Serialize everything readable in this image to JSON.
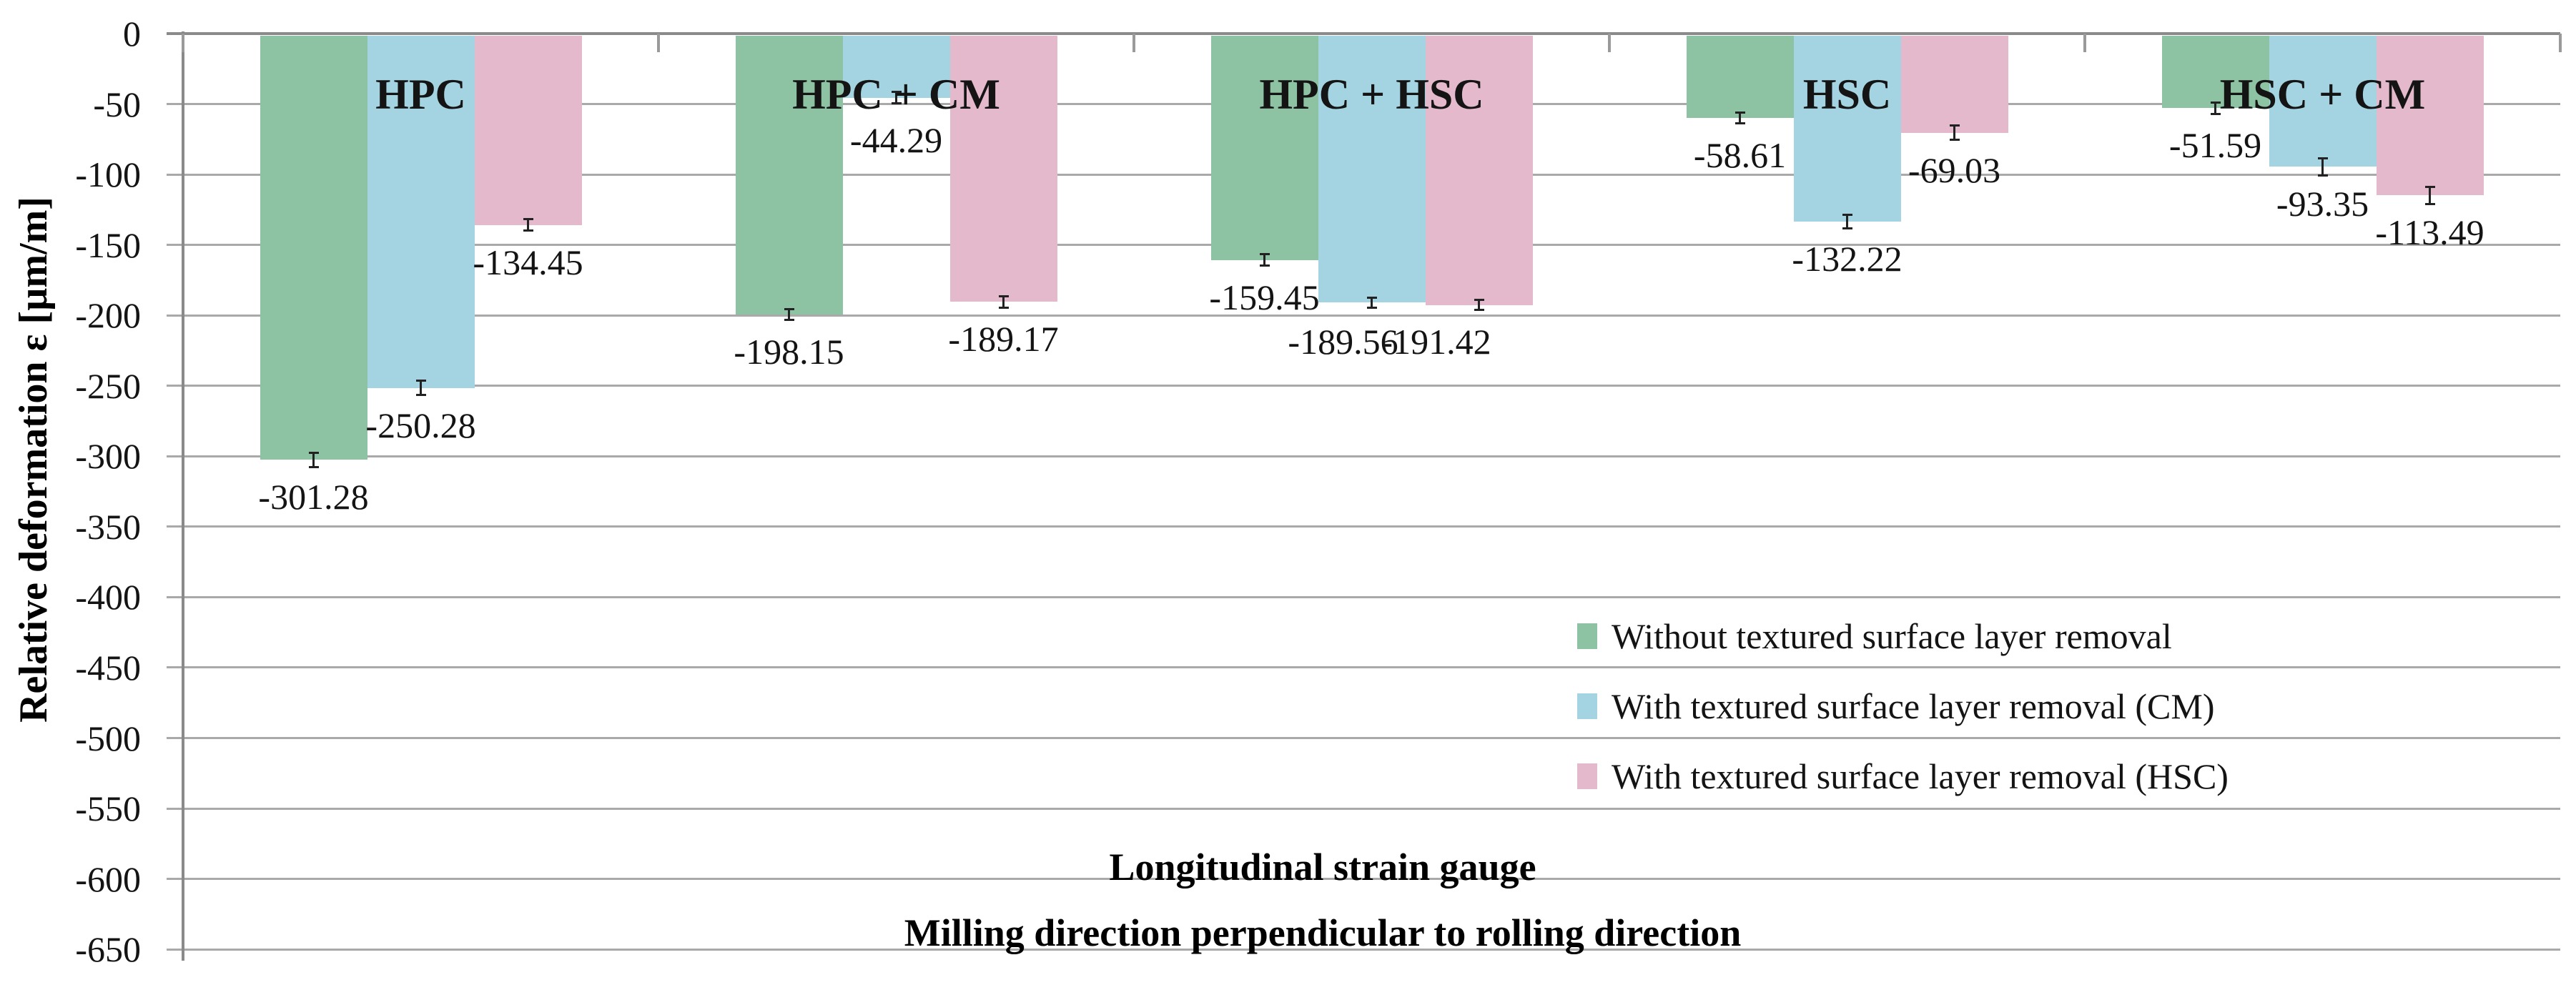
{
  "figure": {
    "y_axis_title": "Relative deformation ε [µm/m]",
    "title_line1": "Longitudinal strain gauge",
    "title_line2": "Milling direction perpendicular to rolling direction"
  },
  "legend": {
    "position": "middle-right",
    "items": [
      {
        "label": "Without textured surface layer removal",
        "color": "#8dc2a2"
      },
      {
        "label": "With textured surface layer removal (CM)",
        "color": "#a4d3e2"
      },
      {
        "label": "With textured surface layer removal (HSC)",
        "color": "#e4b9cc"
      }
    ]
  },
  "chart_data": {
    "type": "bar",
    "orientation": "vertical-negative",
    "title": "Longitudinal strain gauge — Milling direction perpendicular to rolling direction",
    "xlabel": "",
    "ylabel": "Relative deformation ε [µm/m]",
    "ylim": [
      0,
      -650
    ],
    "y_tick_step": 50,
    "y_ticks": [
      "0",
      "-50",
      "-100",
      "-150",
      "-200",
      "-250",
      "-300",
      "-350",
      "-400",
      "-450",
      "-500",
      "-550",
      "-600",
      "-650"
    ],
    "grid": true,
    "data_label_decimals": 2,
    "categories": [
      "HPC",
      "HPC + CM",
      "HPC + HSC",
      "HSC",
      "HSC + CM"
    ],
    "series": [
      {
        "name": "Without textured surface layer removal",
        "key": "without-removal",
        "color": "#8dc2a2",
        "values": [
          -301.28,
          -198.15,
          -159.45,
          -58.61,
          -51.59
        ],
        "errors": [
          5,
          4,
          4,
          4,
          4
        ]
      },
      {
        "name": "With textured surface layer removal (CM)",
        "key": "cm-removal",
        "color": "#a4d3e2",
        "values": [
          -250.28,
          -44.29,
          -189.56,
          -132.22,
          -93.35
        ],
        "errors": [
          5,
          4,
          3.5,
          5,
          6
        ]
      },
      {
        "name": "With textured surface layer removal (HSC)",
        "key": "hsc-removal",
        "color": "#e4b9cc",
        "values": [
          -134.45,
          -189.17,
          -191.42,
          -69.03,
          -113.49
        ],
        "errors": [
          4,
          4,
          3.5,
          5,
          6
        ]
      }
    ]
  }
}
